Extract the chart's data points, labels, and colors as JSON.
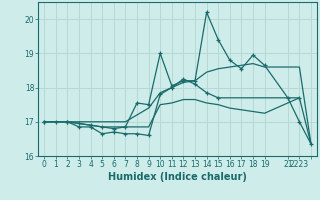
{
  "xlabel": "Humidex (Indice chaleur)",
  "bg_color": "#ceecea",
  "grid_color": "#b8d8d5",
  "line_color": "#1a6b6b",
  "ylim": [
    16,
    20.5
  ],
  "xlim": [
    -0.5,
    23.5
  ],
  "yticks": [
    16,
    17,
    18,
    19,
    20
  ],
  "xticks": [
    0,
    1,
    2,
    3,
    4,
    5,
    6,
    7,
    8,
    9,
    10,
    11,
    12,
    13,
    14,
    15,
    16,
    17,
    18,
    19,
    21,
    22,
    23
  ],
  "xtick_labels": [
    "0",
    "1",
    "2",
    "3",
    "4",
    "5",
    "6",
    "7",
    "8",
    "9",
    "10",
    "11",
    "12",
    "13",
    "14",
    "15",
    "16",
    "17",
    "18",
    "19",
    "21",
    "2223",
    ""
  ],
  "series": [
    {
      "x": [
        0,
        1,
        2,
        3,
        4,
        5,
        6,
        7,
        8,
        9,
        10,
        11,
        12,
        13,
        14,
        15,
        22
      ],
      "y": [
        17.0,
        17.0,
        17.0,
        16.85,
        16.85,
        16.65,
        16.7,
        16.65,
        16.65,
        16.6,
        17.8,
        18.0,
        18.25,
        18.1,
        17.85,
        17.7,
        17.7
      ],
      "marker": "+"
    },
    {
      "x": [
        0,
        1,
        2,
        3,
        4,
        5,
        6,
        7,
        8,
        9,
        10,
        11,
        12,
        13,
        14,
        15,
        16,
        17,
        18,
        19,
        22,
        23
      ],
      "y": [
        17.0,
        17.0,
        17.0,
        16.95,
        16.9,
        16.85,
        16.85,
        16.85,
        16.85,
        16.85,
        17.5,
        17.55,
        17.65,
        17.65,
        17.55,
        17.5,
        17.4,
        17.35,
        17.3,
        17.25,
        17.7,
        16.35
      ],
      "marker": null
    },
    {
      "x": [
        0,
        2,
        3,
        4,
        5,
        6,
        7,
        8,
        9,
        10,
        11,
        12,
        13,
        14,
        15,
        16,
        17,
        18,
        19,
        21,
        22,
        23
      ],
      "y": [
        17.0,
        17.0,
        16.95,
        16.9,
        16.85,
        16.8,
        16.85,
        17.55,
        17.5,
        19.0,
        18.05,
        18.2,
        18.2,
        20.2,
        19.4,
        18.8,
        18.55,
        18.95,
        18.65,
        17.7,
        17.0,
        16.35
      ],
      "marker": "+"
    },
    {
      "x": [
        0,
        1,
        2,
        3,
        4,
        5,
        6,
        7,
        8,
        9,
        10,
        11,
        12,
        13,
        14,
        15,
        16,
        17,
        18,
        19,
        22,
        23
      ],
      "y": [
        17.0,
        17.0,
        17.0,
        17.0,
        17.0,
        17.0,
        17.0,
        17.0,
        17.2,
        17.4,
        17.85,
        18.0,
        18.15,
        18.2,
        18.45,
        18.55,
        18.6,
        18.65,
        18.7,
        18.6,
        18.6,
        16.35
      ],
      "marker": null
    }
  ]
}
